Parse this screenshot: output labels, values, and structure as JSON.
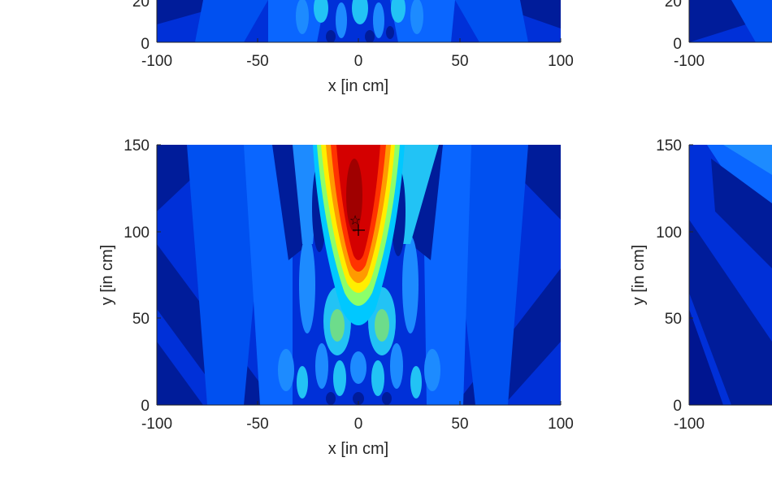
{
  "chart_data": [
    {
      "type": "heatmap",
      "panel": "top-left (partially visible)",
      "xlabel": "x [in cm]",
      "ylabel": "",
      "xlim": [
        -100,
        100
      ],
      "x_ticks": [
        "-100",
        "-50",
        "0",
        "50",
        "100"
      ],
      "y_ticks_visible": [
        "0",
        "20"
      ],
      "colormap": "jet"
    },
    {
      "type": "heatmap",
      "panel": "top-right (partially visible)",
      "xlabel": "",
      "ylabel": "",
      "x_ticks_visible": [
        "-100"
      ],
      "y_ticks_visible": [
        "0",
        "20"
      ],
      "colormap": "jet"
    },
    {
      "type": "heatmap",
      "panel": "bottom-left",
      "xlabel": "x [in cm]",
      "ylabel": "y [in cm]",
      "xlim": [
        -100,
        100
      ],
      "ylim": [
        0,
        150
      ],
      "x_ticks": [
        "-100",
        "-50",
        "0",
        "50",
        "100"
      ],
      "y_ticks": [
        "0",
        "50",
        "100",
        "150"
      ],
      "colormap": "jet",
      "peak_center": {
        "x": 0,
        "y": 110
      },
      "markers": [
        {
          "symbol": "star",
          "x": -2,
          "y": 107
        },
        {
          "symbol": "plus",
          "x": 0,
          "y": 100
        }
      ]
    },
    {
      "type": "heatmap",
      "panel": "bottom-right (partially visible)",
      "xlabel": "",
      "ylabel": "y [in cm]",
      "x_ticks_visible": [
        "-100"
      ],
      "y_ticks": [
        "0",
        "50",
        "100",
        "150"
      ],
      "colormap": "jet"
    }
  ]
}
